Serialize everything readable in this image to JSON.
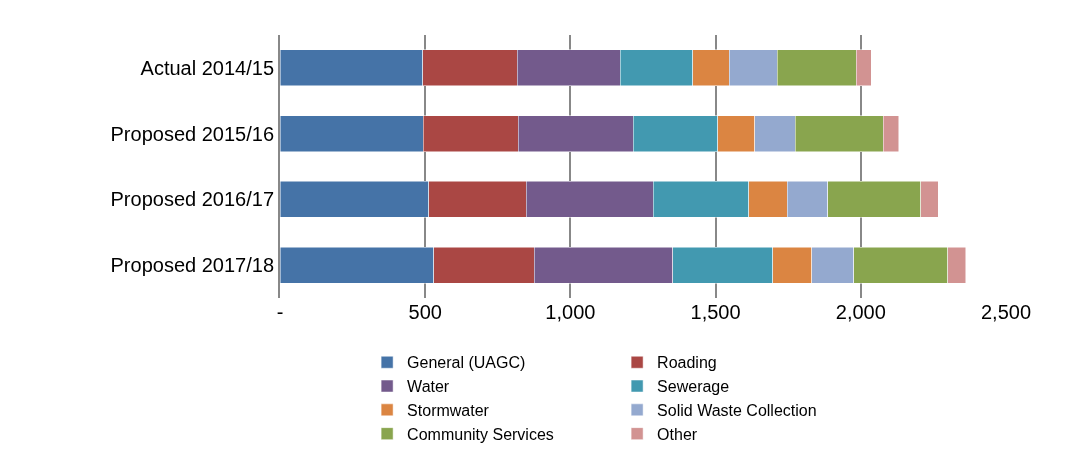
{
  "chart_data": {
    "type": "bar",
    "orientation": "horizontal",
    "stacked": true,
    "categories": [
      "Actual 2014/15",
      "Proposed 2015/16",
      "Proposed 2016/17",
      "Proposed 2017/18"
    ],
    "series": [
      {
        "name": "General (UAGC)",
        "color": "#4573a7",
        "values": [
          492,
          493,
          512,
          530
        ]
      },
      {
        "name": "Roading",
        "color": "#aa4744",
        "values": [
          325,
          328,
          336,
          346
        ]
      },
      {
        "name": "Water",
        "color": "#735a8c",
        "values": [
          355,
          395,
          438,
          476
        ]
      },
      {
        "name": "Sewerage",
        "color": "#4299b0",
        "values": [
          249,
          291,
          328,
          345
        ]
      },
      {
        "name": "Stormwater",
        "color": "#db8542",
        "values": [
          126,
          127,
          133,
          134
        ]
      },
      {
        "name": "Solid Waste Collection",
        "color": "#94a9cf",
        "values": [
          165,
          140,
          140,
          145
        ]
      },
      {
        "name": "Community Services",
        "color": "#89a54e",
        "values": [
          273,
          304,
          320,
          324
        ]
      },
      {
        "name": "Other",
        "color": "#d29392",
        "values": [
          51,
          53,
          60,
          61
        ]
      }
    ],
    "xlim": [
      0,
      2500
    ],
    "xticks": [
      {
        "value": 0,
        "label": "-"
      },
      {
        "value": 500,
        "label": "500"
      },
      {
        "value": 1000,
        "label": "1,000"
      },
      {
        "value": 1500,
        "label": "1,500"
      },
      {
        "value": 2000,
        "label": "2,000"
      },
      {
        "value": 2500,
        "label": "2,500"
      }
    ],
    "grid": "x",
    "legend": "bottom"
  }
}
